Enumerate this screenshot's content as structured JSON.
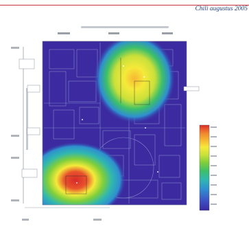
{
  "header": {
    "text": "Chili augustus 2005"
  },
  "colors": {
    "accent_rule": "#c8323c",
    "header_text": "#1f3f86",
    "map_background": "#3b2aa0",
    "colorbar": [
      "#3b2aa0",
      "#3d54c4",
      "#2f8fd0",
      "#2fb7b0",
      "#3cbf6a",
      "#7fcf3a",
      "#c9e03a",
      "#f5ea3a",
      "#f7b832",
      "#f08a2e",
      "#e8532c",
      "#d82a2a"
    ]
  }
}
